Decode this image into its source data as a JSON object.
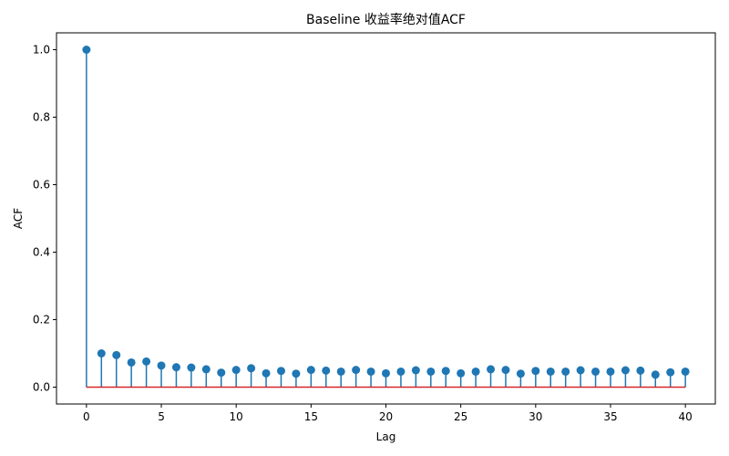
{
  "chart_data": {
    "type": "stem",
    "title": "Baseline 收益率绝对值ACF",
    "xlabel": "Lag",
    "ylabel": "ACF",
    "xlim": [
      -2,
      42
    ],
    "ylim": [
      -0.05,
      1.05
    ],
    "xticks": [
      0,
      5,
      10,
      15,
      20,
      25,
      30,
      35,
      40
    ],
    "yticks": [
      0.0,
      0.2,
      0.4,
      0.6,
      0.8,
      1.0
    ],
    "ytick_labels": [
      "0.0",
      "0.2",
      "0.4",
      "0.6",
      "0.8",
      "1.0"
    ],
    "grid": false,
    "colors": {
      "stem": "#1f77b4",
      "baseline": "#d62728"
    },
    "x": [
      0,
      1,
      2,
      3,
      4,
      5,
      6,
      7,
      8,
      9,
      10,
      11,
      12,
      13,
      14,
      15,
      16,
      17,
      18,
      19,
      20,
      21,
      22,
      23,
      24,
      25,
      26,
      27,
      28,
      29,
      30,
      31,
      32,
      33,
      34,
      35,
      36,
      37,
      38,
      39,
      40
    ],
    "values": [
      1.0,
      0.1,
      0.095,
      0.073,
      0.076,
      0.064,
      0.059,
      0.058,
      0.053,
      0.043,
      0.051,
      0.056,
      0.041,
      0.048,
      0.04,
      0.051,
      0.049,
      0.046,
      0.051,
      0.046,
      0.041,
      0.046,
      0.05,
      0.046,
      0.048,
      0.041,
      0.046,
      0.053,
      0.051,
      0.04,
      0.048,
      0.046,
      0.046,
      0.05,
      0.046,
      0.046,
      0.05,
      0.049,
      0.037,
      0.044,
      0.046
    ]
  }
}
